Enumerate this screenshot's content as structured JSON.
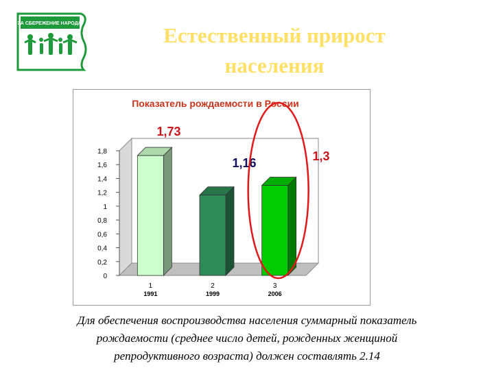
{
  "slide": {
    "title_line1": "Естественный прирост",
    "title_line2": "населения",
    "logo_text": "ЗА СБЕРЕЖЕНИЕ НАРОДА",
    "logo_icon": "family-figures-icon",
    "note_line1": "Для обеспечения воспроизводства населения суммарный показатель",
    "note_line2": "рождаемости (среднее число детей, рожденных женщиной",
    "note_line3": "репродуктивного возраста) должен составлять 2.14"
  },
  "colors": {
    "title": "#ffe066",
    "logo_green": "#1f9a3a",
    "chart_title": "#c8341c",
    "highlight": "#e01818"
  },
  "chart_data": {
    "type": "bar",
    "title": "Показатель рождаемости в России",
    "categories": [
      "1",
      "2",
      "3"
    ],
    "years": [
      "1991",
      "1999",
      "2006"
    ],
    "values": [
      1.73,
      1.16,
      1.3
    ],
    "data_labels": [
      "1,73",
      "1,16",
      "1,3"
    ],
    "data_label_colors": [
      "#c8141a",
      "#101060",
      "#c8141a"
    ],
    "bar_colors": [
      "#ccffcc",
      "#2e8b57",
      "#00cc00"
    ],
    "yticks": [
      "0",
      "0,2",
      "0,4",
      "0,6",
      "0,8",
      "1",
      "1,2",
      "1,4",
      "1,6",
      "1,8"
    ],
    "ylim": [
      0,
      1.8
    ],
    "grid": false,
    "highlighted_category": "3"
  }
}
